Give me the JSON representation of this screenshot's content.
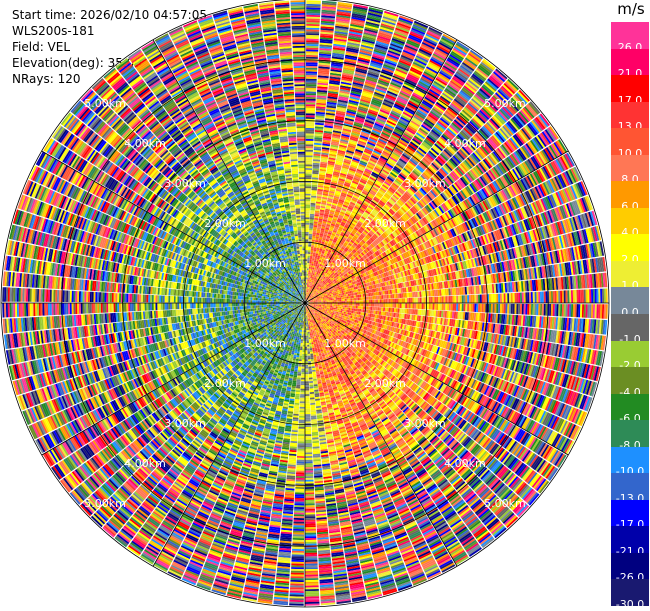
{
  "header": {
    "start_time": "Start time: 2026/02/10 04:57:05",
    "site": "WLS200s-181",
    "field": "Field: VEL",
    "elevation": "Elevation(deg): 35.00",
    "nrays": "NRays: 120"
  },
  "colorbar": {
    "unit": "m/s",
    "levels": [
      {
        "label": "26.0",
        "color": "#ff3399"
      },
      {
        "label": "21.0",
        "color": "#ff0066"
      },
      {
        "label": "17.0",
        "color": "#ff0000"
      },
      {
        "label": "13.0",
        "color": "#ff3333"
      },
      {
        "label": "10.0",
        "color": "#ff5533"
      },
      {
        "label": "8.0",
        "color": "#ff7755"
      },
      {
        "label": "6.0",
        "color": "#ff9900"
      },
      {
        "label": "4.0",
        "color": "#ffcc00"
      },
      {
        "label": "2.0",
        "color": "#ffff00"
      },
      {
        "label": "1.0",
        "color": "#eeee33"
      },
      {
        "label": "0.0",
        "color": "#778899"
      },
      {
        "label": "-1.0",
        "color": "#666666"
      },
      {
        "label": "-2.0",
        "color": "#99cc33"
      },
      {
        "label": "-4.0",
        "color": "#6b8e23"
      },
      {
        "label": "-6.0",
        "color": "#228b22"
      },
      {
        "label": "-8.0",
        "color": "#2e8b57"
      },
      {
        "label": "-10.0",
        "color": "#1e90ff"
      },
      {
        "label": "-13.0",
        "color": "#3366cc"
      },
      {
        "label": "-17.0",
        "color": "#0000ff"
      },
      {
        "label": "-21.0",
        "color": "#0000aa"
      },
      {
        "label": "-26.0",
        "color": "#000080"
      },
      {
        "label": "-30.0",
        "color": "#191970"
      }
    ]
  },
  "chart_data": {
    "type": "heatmap",
    "projection": "ppi-polar",
    "field": "VEL",
    "unit": "m/s",
    "elevation_deg": 35.0,
    "n_rays": 120,
    "range_km": [
      0,
      5.0
    ],
    "range_rings_km": [
      1.0,
      2.0,
      3.0,
      4.0,
      5.0
    ],
    "ring_labels": [
      "1.00km",
      "2.00km",
      "3.00km",
      "4.00km",
      "5.00km"
    ],
    "radial_lines": true,
    "pattern": {
      "near_range_west_sector": "negative (-1 to -13 m/s)",
      "near_range_east_sector": "positive (+4 to +13 m/s)",
      "far_range": "noisy, all levels"
    }
  }
}
